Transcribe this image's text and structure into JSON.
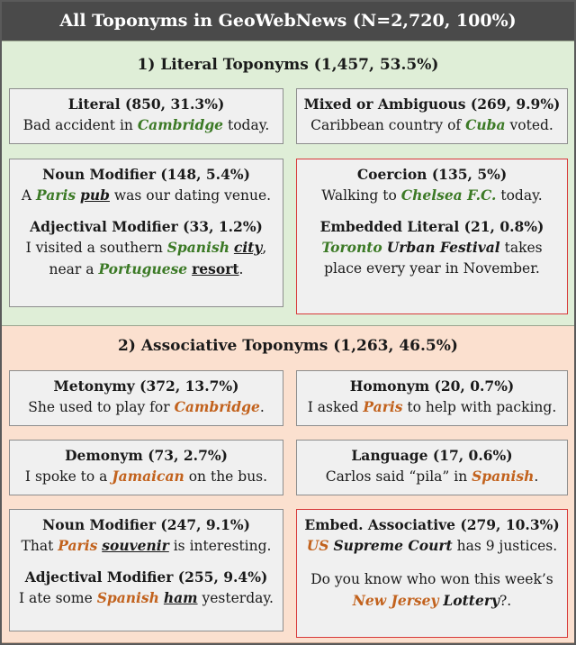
{
  "header": {
    "title": "All Toponyms in GeoWebNews (N=2,720, 100%)"
  },
  "literal": {
    "title": "1)   Literal Toponyms (1,457, 53.5%)",
    "literal_box": {
      "title": "Literal (850, 31.3%)",
      "example": {
        "a": "Bad accident in ",
        "toponym": "Cambridge",
        "b": " today."
      }
    },
    "mixed_box": {
      "title": "Mixed or Ambiguous (269, 9.9%)",
      "example": {
        "a": "Caribbean country of ",
        "toponym": "Cuba",
        "b": " voted."
      }
    },
    "noun_modifier": {
      "title": "Noun Modifier (148, 5.4%)",
      "example": {
        "a": "A ",
        "toponym": "Paris",
        "sp": " ",
        "head": "pub",
        "b": " was our dating venue."
      }
    },
    "adjectival_modifier": {
      "title": "Adjectival Modifier (33, 1.2%)",
      "line1": {
        "a": "I visited a southern ",
        "toponym": "Spanish",
        "sp": " ",
        "head": "city",
        "b": ","
      },
      "line2": {
        "a": "near a ",
        "toponym": "Portuguese",
        "sp": " ",
        "head": "resort",
        "b": "."
      }
    },
    "coercion": {
      "title": "Coercion (135, 5%)",
      "example": {
        "a": "Walking to ",
        "toponym": "Chelsea F.C.",
        "b": " today."
      }
    },
    "embedded_literal": {
      "title": "Embedded Literal (21, 0.8%)",
      "line1": {
        "toponym": "Toronto",
        "sp": " ",
        "rest": "Urban Festival",
        "b": " takes"
      },
      "line2": "place every year in November."
    }
  },
  "associative": {
    "title": "2)   Associative Toponyms (1,263, 46.5%)",
    "metonymy": {
      "title": "Metonymy (372, 13.7%)",
      "example": {
        "a": "She used to play for ",
        "toponym": "Cambridge",
        "b": "."
      }
    },
    "homonym": {
      "title": "Homonym (20, 0.7%)",
      "example": {
        "a": "I asked ",
        "toponym": "Paris",
        "b": " to help with packing."
      }
    },
    "demonym": {
      "title": "Demonym (73, 2.7%)",
      "example": {
        "a": "I spoke to a ",
        "toponym": "Jamaican",
        "b": " on the bus."
      }
    },
    "language": {
      "title": "Language (17, 0.6%)",
      "example": {
        "a": "Carlos said “pila” in ",
        "toponym": "Spanish",
        "b": "."
      }
    },
    "noun_modifier": {
      "title": "Noun Modifier (247, 9.1%)",
      "example": {
        "a": "That ",
        "toponym": "Paris",
        "sp": " ",
        "head": "souvenir",
        "b": " is interesting."
      }
    },
    "adjectival_modifier": {
      "title": "Adjectival Modifier (255, 9.4%)",
      "example": {
        "a": "I ate some ",
        "toponym": "Spanish",
        "sp": " ",
        "head": "ham",
        "b": " yesterday."
      }
    },
    "embed_associative": {
      "title": "Embed. Associative (279, 10.3%)",
      "line1": {
        "toponym": "US",
        "sp": " ",
        "rest": "Supreme Court",
        "b": " has 9 justices."
      },
      "line2": "Do you know who won this week’s",
      "line3": {
        "toponym": "New Jersey",
        "sp": " ",
        "rest": "Lottery",
        "b": "?."
      }
    }
  },
  "colors": {
    "header_bg": "#4a4a4a",
    "literal_bg": "#dfeed7",
    "associative_bg": "#fbe0cf",
    "box_bg": "#f0f0f0",
    "literal_toponym": "#3c7a26",
    "associative_toponym": "#c2621d",
    "embedded_border": "#d83a3a"
  }
}
